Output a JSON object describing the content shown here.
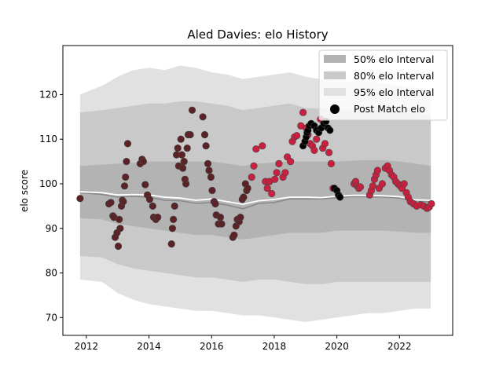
{
  "chart_data": {
    "type": "scatter",
    "title": "Aled Davies: elo History",
    "xlabel": "",
    "ylabel": "elo score",
    "xlim": [
      2011.25,
      2023.7
    ],
    "ylim": [
      66,
      131
    ],
    "xticks": [
      2012,
      2014,
      2016,
      2018,
      2020,
      2022
    ],
    "yticks": [
      70,
      80,
      90,
      100,
      110,
      120
    ],
    "legend_position": "top-right",
    "legend": [
      {
        "label": "50% elo Interval",
        "color": "#b3b3b3",
        "kind": "patch"
      },
      {
        "label": "80% elo Interval",
        "color": "#c9c9c9",
        "kind": "patch"
      },
      {
        "label": "95% elo Interval",
        "color": "#e1e1e1",
        "kind": "patch"
      },
      {
        "label": "Post Match elo",
        "color": "#000000",
        "kind": "marker"
      }
    ],
    "bands": {
      "x": [
        2011.8,
        2012.5,
        2013.0,
        2013.5,
        2014.0,
        2014.5,
        2015.0,
        2015.5,
        2016.0,
        2016.5,
        2017.0,
        2017.5,
        2018.0,
        2018.5,
        2019.0,
        2019.5,
        2020.0,
        2020.5,
        2021.0,
        2021.5,
        2022.0,
        2022.5,
        2023.0
      ],
      "mean": [
        98.2,
        98.0,
        97.5,
        97.6,
        97.5,
        97.0,
        96.8,
        96.3,
        96.6,
        96.0,
        95.4,
        96.2,
        96.5,
        97.0,
        97.0,
        96.9,
        97.2,
        97.4,
        97.4,
        97.3,
        97.1,
        96.4,
        96.3
      ],
      "p50_lo": [
        92.3,
        92.0,
        91.0,
        90.5,
        90.0,
        89.5,
        89.0,
        88.5,
        88.5,
        88.0,
        87.5,
        88.0,
        88.5,
        89.0,
        89.0,
        89.0,
        89.5,
        89.5,
        89.5,
        89.5,
        89.3,
        89.0,
        89.0
      ],
      "p50_hi": [
        104.0,
        104.3,
        104.5,
        104.7,
        105.0,
        105.0,
        105.0,
        105.0,
        105.0,
        104.5,
        104.0,
        104.5,
        104.8,
        105.0,
        105.0,
        105.0,
        105.0,
        105.2,
        105.3,
        105.3,
        105.0,
        104.5,
        104.0
      ],
      "p80_lo": [
        83.8,
        83.5,
        82.0,
        81.0,
        80.5,
        80.0,
        79.5,
        79.0,
        79.0,
        78.5,
        78.0,
        78.5,
        78.5,
        78.0,
        77.5,
        77.5,
        78.0,
        78.0,
        78.0,
        78.0,
        78.0,
        78.0,
        78.0
      ],
      "p80_hi": [
        116.0,
        116.5,
        117.0,
        117.5,
        118.0,
        118.0,
        118.5,
        118.5,
        118.0,
        117.5,
        116.5,
        117.0,
        117.5,
        118.0,
        117.0,
        116.8,
        116.5,
        116.5,
        116.5,
        116.3,
        116.0,
        115.8,
        115.5
      ],
      "p95_lo": [
        78.5,
        78.0,
        75.5,
        74.0,
        73.0,
        72.5,
        72.0,
        71.5,
        71.5,
        71.0,
        70.5,
        70.5,
        70.0,
        69.5,
        69.0,
        69.5,
        70.0,
        70.5,
        71.0,
        71.0,
        71.5,
        72.0,
        72.0
      ],
      "p95_hi": [
        120.0,
        122.0,
        124.0,
        125.5,
        126.0,
        125.5,
        126.5,
        126.0,
        125.0,
        124.5,
        123.5,
        124.0,
        124.5,
        125.0,
        124.0,
        123.5,
        123.0,
        123.0,
        123.0,
        122.5,
        122.0,
        121.5,
        120.5
      ]
    },
    "mean_dark": {
      "x": [
        2011.8,
        2012.5,
        2013.0,
        2013.5,
        2014.0,
        2014.5,
        2015.0,
        2015.5,
        2016.0,
        2016.5,
        2017.0,
        2017.5,
        2018.0,
        2018.5,
        2019.0,
        2019.5,
        2020.0,
        2020.5,
        2021.0,
        2021.5,
        2022.0,
        2022.5,
        2023.0
      ],
      "y": [
        98.0,
        97.6,
        97.0,
        97.2,
        97.0,
        96.3,
        96.2,
        95.6,
        95.8,
        95.2,
        94.4,
        95.6,
        95.8,
        96.6,
        96.6,
        96.6,
        96.9,
        97.1,
        97.1,
        97.0,
        96.8,
        96.0,
        96.0
      ]
    },
    "series": [
      {
        "color": "#5b2326",
        "x": [
          2011.8,
          2012.72,
          2012.78,
          2012.85,
          2012.88,
          2012.92,
          2012.98,
          2013.02,
          2013.05,
          2013.08,
          2013.12,
          2013.15,
          2013.18,
          2013.22,
          2013.25,
          2013.28,
          2013.32,
          2013.72,
          2013.78,
          2013.82,
          2013.88,
          2013.95,
          2014.02,
          2014.12,
          2014.15,
          2014.22,
          2014.28,
          2014.72,
          2014.75,
          2014.78,
          2014.82,
          2014.88,
          2014.92,
          2014.95,
          2015.02,
          2015.05,
          2015.08,
          2015.12,
          2015.15,
          2015.18,
          2015.22,
          2015.25,
          2015.32,
          2015.38,
          2015.72,
          2015.78,
          2015.82,
          2015.88,
          2015.92,
          2015.98,
          2016.02,
          2016.08,
          2016.12,
          2016.15,
          2016.22,
          2016.28,
          2016.32,
          2016.68,
          2016.72,
          2016.78,
          2016.82,
          2016.88,
          2016.92,
          2016.98,
          2017.02,
          2017.08,
          2017.12,
          2017.15
        ],
        "y": [
          96.7,
          95.5,
          95.8,
          92.8,
          92.5,
          88.0,
          89.0,
          86.0,
          92.0,
          90.0,
          95.0,
          96.3,
          96.0,
          99.5,
          101.5,
          105.0,
          109.0,
          104.5,
          105.5,
          105.0,
          99.8,
          97.5,
          96.5,
          95.0,
          92.5,
          92.0,
          92.5,
          86.5,
          90.0,
          92.0,
          95.0,
          106.5,
          108.0,
          104.0,
          110.0,
          106.5,
          103.5,
          105.0,
          101.0,
          100.0,
          108.0,
          111.0,
          111.0,
          116.5,
          115.0,
          111.0,
          108.5,
          104.5,
          103.0,
          101.5,
          98.5,
          96.0,
          95.5,
          93.0,
          91.0,
          92.5,
          91.0,
          88.0,
          88.5,
          90.5,
          92.0,
          91.5,
          92.5,
          96.5,
          97.0,
          100.0,
          98.5,
          99.0
        ]
      },
      {
        "color": "#c8203f",
        "x": [
          2017.28,
          2017.35,
          2017.42,
          2017.62,
          2017.72,
          2017.78,
          2017.85,
          2017.92,
          2018.02,
          2018.08,
          2018.15,
          2018.28,
          2018.35,
          2018.42,
          2018.52,
          2018.58,
          2018.65,
          2018.72,
          2018.85,
          2018.92,
          2019.02,
          2019.08,
          2019.15,
          2019.22,
          2019.28,
          2019.35,
          2019.42,
          2019.48,
          2019.55,
          2019.62,
          2019.75,
          2019.82,
          2019.88
        ],
        "y": [
          101.5,
          104.0,
          107.8,
          108.5,
          100.5,
          99.0,
          100.5,
          97.8,
          101.0,
          102.5,
          104.5,
          101.5,
          102.5,
          106.0,
          105.0,
          109.5,
          110.5,
          110.8,
          113.0,
          116.0,
          112.5,
          111.0,
          109.0,
          108.5,
          107.5,
          110.0,
          111.5,
          114.5,
          108.0,
          109.0,
          107.0,
          104.5,
          99.0
        ]
      },
      {
        "color": "#000000",
        "x": [
          2018.92,
          2018.98,
          2019.02,
          2019.05,
          2019.08,
          2019.12,
          2019.18,
          2019.28,
          2019.35,
          2019.42,
          2019.5,
          2019.58,
          2019.65,
          2019.72,
          2019.78,
          2019.92,
          2020.0,
          2020.05,
          2020.1
        ],
        "y": [
          108.5,
          109.5,
          110.5,
          111.5,
          112.0,
          113.0,
          113.5,
          113.0,
          112.0,
          111.5,
          112.5,
          113.5,
          114.0,
          112.5,
          112.0,
          99.0,
          98.5,
          97.5,
          97.0
        ]
      },
      {
        "color": "#c8203f",
        "x": [
          2020.55,
          2020.6,
          2020.65,
          2020.7,
          2020.75,
          2021.05,
          2021.1,
          2021.15,
          2021.2,
          2021.25,
          2021.3,
          2021.35,
          2021.45,
          2021.55,
          2021.62,
          2021.68,
          2021.75,
          2021.82,
          2021.88,
          2021.95,
          2022.02,
          2022.08,
          2022.15,
          2022.22,
          2022.28,
          2022.35,
          2022.45,
          2022.55,
          2022.68,
          2022.78,
          2022.88,
          2022.95,
          2023.02
        ],
        "y": [
          100.0,
          100.5,
          99.5,
          99.0,
          99.3,
          97.5,
          98.5,
          99.5,
          101.0,
          102.0,
          103.0,
          99.0,
          100.0,
          103.5,
          104.0,
          103.0,
          102.0,
          101.5,
          100.5,
          100.0,
          99.5,
          99.0,
          100.0,
          98.0,
          97.0,
          96.0,
          95.5,
          95.0,
          95.3,
          95.0,
          94.5,
          94.8,
          95.5
        ]
      }
    ]
  }
}
